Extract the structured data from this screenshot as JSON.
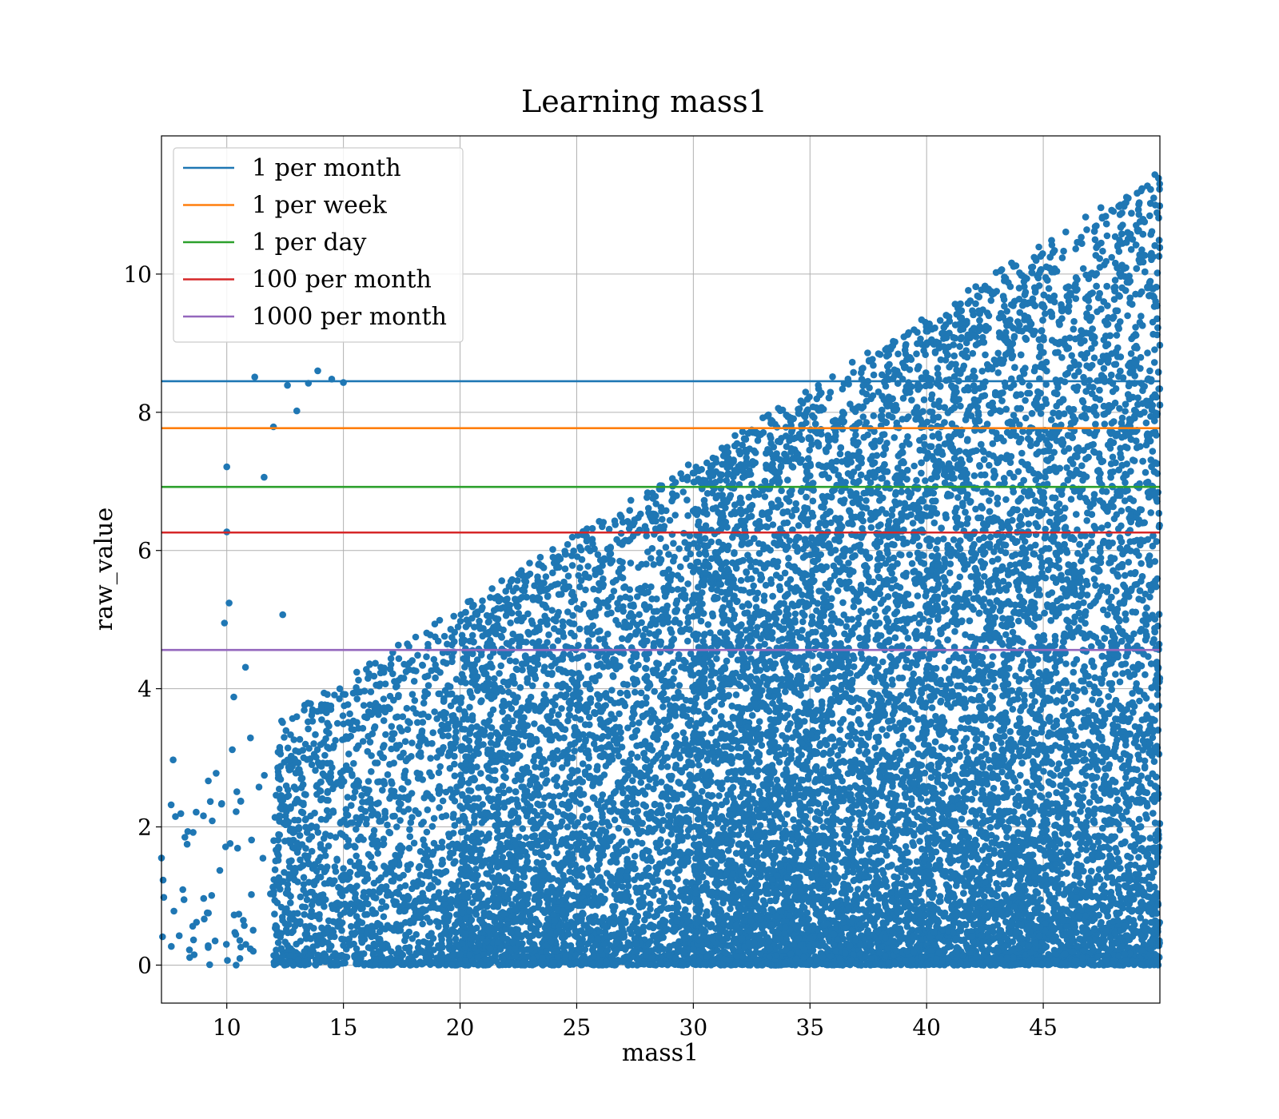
{
  "chart_data": {
    "type": "scatter",
    "title": "Learning mass1",
    "xlabel": "mass1",
    "ylabel": "raw_value",
    "xlim": [
      7.2,
      50.0
    ],
    "ylim": [
      -0.55,
      12.0
    ],
    "xticks": [
      10,
      15,
      20,
      25,
      30,
      35,
      40,
      45
    ],
    "yticks": [
      0,
      2,
      4,
      6,
      8,
      10
    ],
    "grid": true,
    "legend_position": "upper-left",
    "scatter_color": "#1f77b4",
    "scatter_series": {
      "x": [
        7.2,
        7.7,
        7.8,
        8.3,
        8.4,
        8.6,
        8.7,
        9.0,
        9.2,
        9.5,
        9.7,
        9.9,
        10.0,
        10.0,
        10.1,
        10.3,
        10.4,
        10.6,
        10.8,
        11.2,
        11.6,
        12.0,
        12.4,
        12.6,
        13.0,
        13.5,
        13.9,
        14.5,
        15.0
      ],
      "y": [
        1.55,
        2.97,
        2.15,
        1.75,
        0.22,
        0.15,
        0.62,
        2.16,
        0.28,
        0.35,
        1.37,
        4.95,
        6.27,
        7.21,
        5.24,
        3.88,
        2.22,
        0.26,
        4.31,
        8.51,
        7.06,
        7.79,
        5.07,
        8.39,
        8.02,
        8.42,
        8.6,
        8.48,
        8.43
      ]
    },
    "scatter_density": [
      {
        "x_range": [
          7.2,
          12.0
        ],
        "count": 60
      },
      {
        "x_range": [
          12.0,
          20.0
        ],
        "count": 1500
      },
      {
        "x_range": [
          20.0,
          30.0
        ],
        "count": 3500
      },
      {
        "x_range": [
          30.0,
          40.0
        ],
        "count": 6000
      },
      {
        "x_range": [
          40.0,
          50.0
        ],
        "count": 7500
      }
    ],
    "hlines": [
      {
        "name": "1 per month",
        "y": 8.45,
        "color": "#1f77b4"
      },
      {
        "name": "1 per week",
        "y": 7.77,
        "color": "#ff7f0e"
      },
      {
        "name": "1 per day",
        "y": 6.92,
        "color": "#2ca02c"
      },
      {
        "name": "100 per month",
        "y": 6.26,
        "color": "#d62728"
      },
      {
        "name": "1000 per month",
        "y": 4.56,
        "color": "#9467bd"
      }
    ]
  }
}
